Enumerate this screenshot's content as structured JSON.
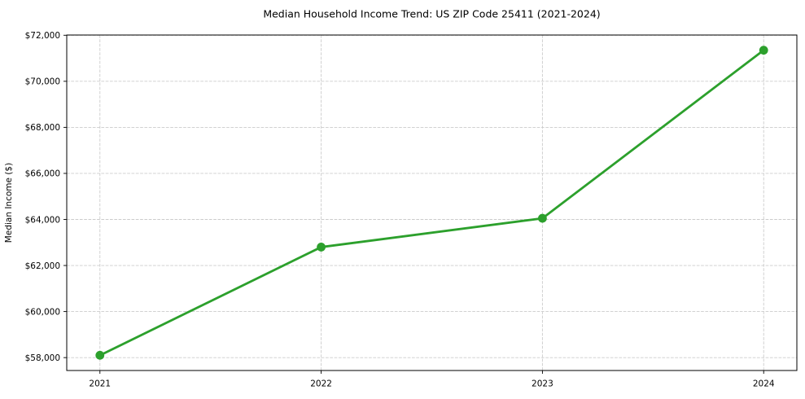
{
  "chart_data": {
    "type": "line",
    "title": "Median Household Income Trend: US ZIP Code 25411 (2021-2024)",
    "xlabel": "",
    "ylabel": "Median Income ($)",
    "x": [
      2021,
      2022,
      2023,
      2024
    ],
    "x_tick_labels": [
      "2021",
      "2022",
      "2023",
      "2024"
    ],
    "values": [
      58100,
      62800,
      64050,
      71350
    ],
    "y_tick_values": [
      58000,
      60000,
      62000,
      64000,
      66000,
      68000,
      70000,
      72000
    ],
    "y_tick_labels": [
      "$58,000",
      "$60,000",
      "$62,000",
      "$64,000",
      "$66,000",
      "$68,000",
      "$70,000",
      "$72,000"
    ],
    "xlim": [
      2020.85,
      2024.15
    ],
    "ylim": [
      57440,
      72010
    ],
    "grid": {
      "visible": true,
      "style": "dashed",
      "color": "#cccccc"
    },
    "legend": "none",
    "line_color": "#2ca02c",
    "marker": "circle",
    "marker_color": "#2ca02c",
    "axis_color": "#000000",
    "background": "#ffffff"
  }
}
